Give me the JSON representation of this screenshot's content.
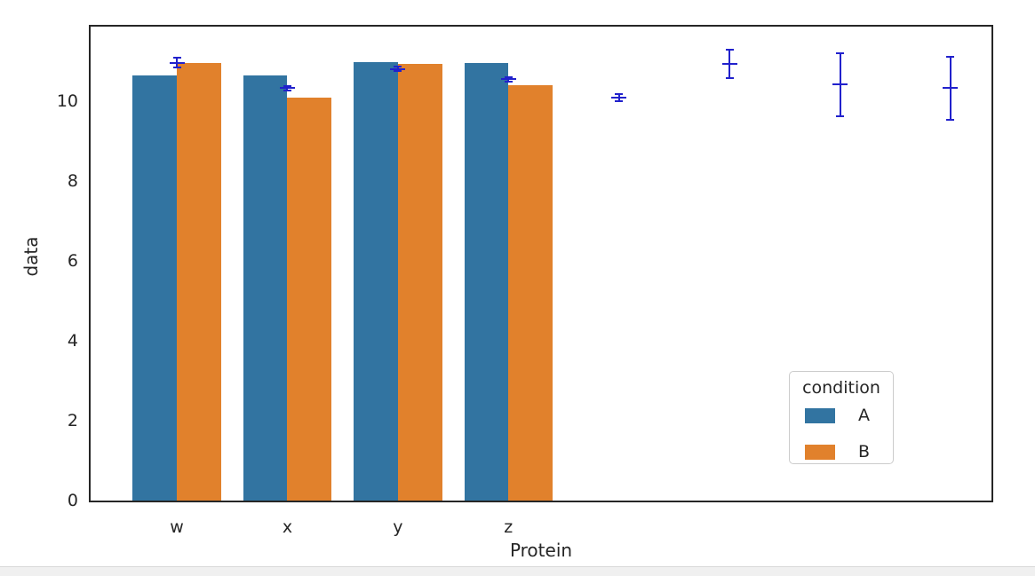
{
  "colors": {
    "background": "#ffffff",
    "spine": "#262626",
    "text": "#262626",
    "series_a": "#3274a1",
    "series_b": "#e1812c",
    "error_bar": "#2121cc",
    "legend_border": "#cccccc",
    "scrollbar_track": "#f0f0f0",
    "scrollbar_border": "#d9d9d9"
  },
  "chart_data": {
    "type": "bar",
    "title": "",
    "xlabel": "Protein",
    "ylabel": "data",
    "categories": [
      "w",
      "x",
      "y",
      "z"
    ],
    "series": [
      {
        "name": "A",
        "color": "#3274a1",
        "values": [
          10.64,
          10.63,
          10.97,
          10.95
        ]
      },
      {
        "name": "B",
        "color": "#e1812c",
        "values": [
          10.95,
          10.09,
          10.93,
          10.4
        ]
      }
    ],
    "error_bars": {
      "color": "#2121cc",
      "note": "vertical error bars with caps and a wide center tick; slots 4-7 have no bars",
      "points": [
        {
          "slot": 0,
          "center": 10.95,
          "lo": 10.84,
          "hi": 11.08
        },
        {
          "slot": 1,
          "center": 10.33,
          "lo": 10.27,
          "hi": 10.38
        },
        {
          "slot": 2,
          "center": 10.8,
          "lo": 10.75,
          "hi": 10.86
        },
        {
          "slot": 3,
          "center": 10.55,
          "lo": 10.49,
          "hi": 10.6
        },
        {
          "slot": 4,
          "center": 10.09,
          "lo": 10.0,
          "hi": 10.18
        },
        {
          "slot": 5,
          "center": 10.93,
          "lo": 10.57,
          "hi": 11.28
        },
        {
          "slot": 6,
          "center": 10.42,
          "lo": 9.62,
          "hi": 11.19
        },
        {
          "slot": 7,
          "center": 10.33,
          "lo": 9.53,
          "hi": 11.1
        }
      ]
    },
    "yticks": [
      0,
      2,
      4,
      6,
      8,
      10
    ],
    "ylim": [
      0,
      11.86
    ],
    "xlim": [
      -0.78,
      7.37
    ],
    "bar_width_units": 0.4,
    "grid": false,
    "legend": {
      "title": "condition",
      "position": "lower right",
      "entries": [
        {
          "label": "A"
        },
        {
          "label": "B"
        }
      ]
    }
  }
}
